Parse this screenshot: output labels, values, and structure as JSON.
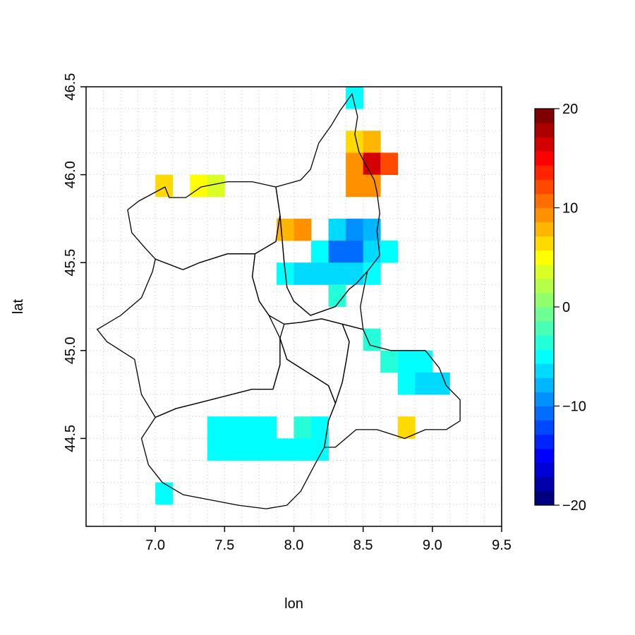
{
  "chart_data": {
    "type": "heatmap",
    "title": "",
    "xlabel": "lon",
    "ylabel": "lat",
    "xlim": [
      6.5,
      9.5
    ],
    "ylim": [
      44.0,
      46.5
    ],
    "xticks": [
      "7.0",
      "7.5",
      "8.0",
      "8.5",
      "9.0",
      "9.5"
    ],
    "yticks": [
      "44.5",
      "45.0",
      "45.5",
      "46.0",
      "46.5"
    ],
    "grid": true,
    "cell_size": [
      0.125,
      0.125
    ],
    "colorbar": {
      "min": -20,
      "max": 20,
      "ticks": [
        "-20",
        "-10",
        "0",
        "10",
        "20"
      ],
      "palette": [
        "#00007F",
        "#0000AA",
        "#0000D4",
        "#0000FF",
        "#0024FF",
        "#0048FF",
        "#006DFF",
        "#0091FF",
        "#00B6FF",
        "#00DAFF",
        "#00FFFF",
        "#24FFDA",
        "#48FFB6",
        "#6DFF91",
        "#91FF6D",
        "#B6FF48",
        "#DAFF24",
        "#FFFF00",
        "#FFDA00",
        "#FFB600",
        "#FF9100",
        "#FF6D00",
        "#FF4800",
        "#FF2400",
        "#FF0000",
        "#D40000",
        "#AA0000",
        "#7F0000"
      ]
    },
    "cells": [
      {
        "lon": 8.4375,
        "lat": 46.4375,
        "value": -5
      },
      {
        "lon": 8.4375,
        "lat": 46.1875,
        "value": 7
      },
      {
        "lon": 8.5625,
        "lat": 46.1875,
        "value": 8
      },
      {
        "lon": 8.4375,
        "lat": 46.0625,
        "value": 9
      },
      {
        "lon": 8.5625,
        "lat": 46.0625,
        "value": 16
      },
      {
        "lon": 8.6875,
        "lat": 46.0625,
        "value": 12
      },
      {
        "lon": 8.4375,
        "lat": 45.9375,
        "value": 9
      },
      {
        "lon": 8.5625,
        "lat": 45.9375,
        "value": 9
      },
      {
        "lon": 7.0625,
        "lat": 45.9375,
        "value": 6
      },
      {
        "lon": 7.3125,
        "lat": 45.9375,
        "value": 5
      },
      {
        "lon": 7.4375,
        "lat": 45.9375,
        "value": 3
      },
      {
        "lon": 7.9375,
        "lat": 45.6875,
        "value": 8
      },
      {
        "lon": 8.0625,
        "lat": 45.6875,
        "value": 9
      },
      {
        "lon": 8.3125,
        "lat": 45.6875,
        "value": -7
      },
      {
        "lon": 8.4375,
        "lat": 45.6875,
        "value": -9
      },
      {
        "lon": 8.5625,
        "lat": 45.6875,
        "value": -8
      },
      {
        "lon": 8.1875,
        "lat": 45.5625,
        "value": -5
      },
      {
        "lon": 8.3125,
        "lat": 45.5625,
        "value": -11
      },
      {
        "lon": 8.4375,
        "lat": 45.5625,
        "value": -11
      },
      {
        "lon": 8.5625,
        "lat": 45.5625,
        "value": -7
      },
      {
        "lon": 8.6875,
        "lat": 45.5625,
        "value": -5
      },
      {
        "lon": 7.9375,
        "lat": 45.4375,
        "value": -5
      },
      {
        "lon": 8.0625,
        "lat": 45.4375,
        "value": -7
      },
      {
        "lon": 8.1875,
        "lat": 45.4375,
        "value": -7
      },
      {
        "lon": 8.3125,
        "lat": 45.4375,
        "value": -7
      },
      {
        "lon": 8.4375,
        "lat": 45.4375,
        "value": -7
      },
      {
        "lon": 8.5625,
        "lat": 45.4375,
        "value": -5
      },
      {
        "lon": 8.3125,
        "lat": 45.3125,
        "value": -3
      },
      {
        "lon": 8.5625,
        "lat": 45.0625,
        "value": -3
      },
      {
        "lon": 8.6875,
        "lat": 44.9375,
        "value": -3
      },
      {
        "lon": 8.8125,
        "lat": 44.9375,
        "value": -5
      },
      {
        "lon": 8.9375,
        "lat": 44.9375,
        "value": -5
      },
      {
        "lon": 8.8125,
        "lat": 44.8125,
        "value": -5
      },
      {
        "lon": 8.9375,
        "lat": 44.8125,
        "value": -7
      },
      {
        "lon": 9.0625,
        "lat": 44.8125,
        "value": -7
      },
      {
        "lon": 8.8125,
        "lat": 44.5625,
        "value": 7
      },
      {
        "lon": 7.4375,
        "lat": 44.5625,
        "value": -5
      },
      {
        "lon": 7.5625,
        "lat": 44.5625,
        "value": -5
      },
      {
        "lon": 7.6875,
        "lat": 44.5625,
        "value": -5
      },
      {
        "lon": 7.8125,
        "lat": 44.5625,
        "value": -5
      },
      {
        "lon": 8.0625,
        "lat": 44.5625,
        "value": -3
      },
      {
        "lon": 8.1875,
        "lat": 44.5625,
        "value": -5
      },
      {
        "lon": 7.4375,
        "lat": 44.4375,
        "value": -5
      },
      {
        "lon": 7.5625,
        "lat": 44.4375,
        "value": -5
      },
      {
        "lon": 7.6875,
        "lat": 44.4375,
        "value": -5
      },
      {
        "lon": 7.8125,
        "lat": 44.4375,
        "value": -5
      },
      {
        "lon": 7.9375,
        "lat": 44.4375,
        "value": -5
      },
      {
        "lon": 8.0625,
        "lat": 44.4375,
        "value": -5
      },
      {
        "lon": 8.1875,
        "lat": 44.4375,
        "value": -5
      },
      {
        "lon": 7.0625,
        "lat": 44.1875,
        "value": -5
      }
    ],
    "outline_polygons": [
      [
        [
          6.88,
          45.85
        ],
        [
          7.07,
          45.93
        ],
        [
          7.1,
          45.87
        ],
        [
          7.22,
          45.87
        ],
        [
          7.33,
          45.93
        ],
        [
          7.52,
          45.96
        ],
        [
          7.7,
          45.96
        ],
        [
          7.87,
          45.93
        ],
        [
          7.9,
          45.77
        ],
        [
          7.87,
          45.62
        ],
        [
          7.72,
          45.55
        ],
        [
          7.52,
          45.55
        ],
        [
          7.32,
          45.5
        ],
        [
          7.2,
          45.46
        ],
        [
          7.0,
          45.52
        ],
        [
          6.93,
          45.58
        ],
        [
          6.83,
          45.67
        ],
        [
          6.8,
          45.8
        ]
      ],
      [
        [
          7.87,
          45.93
        ],
        [
          8.05,
          45.97
        ],
        [
          8.12,
          46.03
        ],
        [
          8.18,
          46.18
        ],
        [
          8.27,
          46.28
        ],
        [
          8.33,
          46.36
        ],
        [
          8.42,
          46.46
        ],
        [
          8.46,
          46.33
        ],
        [
          8.44,
          46.23
        ],
        [
          8.47,
          46.13
        ],
        [
          8.53,
          46.04
        ],
        [
          8.58,
          45.97
        ],
        [
          8.6,
          45.9
        ],
        [
          8.62,
          45.78
        ],
        [
          8.6,
          45.68
        ],
        [
          8.62,
          45.54
        ],
        [
          8.53,
          45.45
        ],
        [
          8.45,
          45.38
        ],
        [
          8.4,
          45.35
        ],
        [
          8.3,
          45.25
        ],
        [
          8.12,
          45.2
        ],
        [
          8.0,
          45.28
        ],
        [
          7.95,
          45.36
        ],
        [
          7.93,
          45.5
        ],
        [
          7.9,
          45.77
        ]
      ],
      [
        [
          7.9,
          45.77
        ],
        [
          7.93,
          45.5
        ],
        [
          7.95,
          45.36
        ],
        [
          8.0,
          45.28
        ],
        [
          8.12,
          45.2
        ],
        [
          8.3,
          45.25
        ],
        [
          8.4,
          45.35
        ],
        [
          8.45,
          45.38
        ],
        [
          8.53,
          45.45
        ],
        [
          8.48,
          45.25
        ],
        [
          8.5,
          45.12
        ],
        [
          8.45,
          45.13
        ],
        [
          8.35,
          45.15
        ],
        [
          8.2,
          45.18
        ],
        [
          8.05,
          45.16
        ],
        [
          7.93,
          45.15
        ],
        [
          7.82,
          45.2
        ],
        [
          7.75,
          45.28
        ],
        [
          7.7,
          45.42
        ],
        [
          7.72,
          45.55
        ],
        [
          7.87,
          45.62
        ]
      ],
      [
        [
          7.0,
          45.52
        ],
        [
          7.2,
          45.46
        ],
        [
          7.32,
          45.5
        ],
        [
          7.52,
          45.55
        ],
        [
          7.72,
          45.55
        ],
        [
          7.7,
          45.42
        ],
        [
          7.75,
          45.28
        ],
        [
          7.82,
          45.2
        ],
        [
          7.9,
          45.07
        ],
        [
          7.9,
          44.92
        ],
        [
          7.85,
          44.78
        ],
        [
          7.7,
          44.78
        ],
        [
          7.5,
          44.74
        ],
        [
          7.3,
          44.7
        ],
        [
          7.15,
          44.67
        ],
        [
          7.0,
          44.62
        ],
        [
          6.9,
          44.75
        ],
        [
          6.85,
          44.95
        ],
        [
          6.65,
          45.05
        ],
        [
          6.58,
          45.12
        ],
        [
          6.75,
          45.2
        ],
        [
          6.9,
          45.3
        ],
        [
          6.98,
          45.45
        ]
      ],
      [
        [
          7.9,
          45.07
        ],
        [
          7.95,
          44.95
        ],
        [
          8.05,
          44.9
        ],
        [
          8.15,
          44.85
        ],
        [
          8.25,
          44.8
        ],
        [
          8.3,
          44.7
        ],
        [
          8.25,
          44.6
        ],
        [
          8.22,
          44.45
        ],
        [
          8.15,
          44.35
        ],
        [
          8.05,
          44.2
        ],
        [
          7.95,
          44.12
        ],
        [
          7.8,
          44.1
        ],
        [
          7.6,
          44.12
        ],
        [
          7.4,
          44.15
        ],
        [
          7.2,
          44.18
        ],
        [
          7.05,
          44.25
        ],
        [
          6.95,
          44.35
        ],
        [
          6.9,
          44.5
        ],
        [
          7.0,
          44.62
        ],
        [
          7.15,
          44.67
        ],
        [
          7.3,
          44.7
        ],
        [
          7.5,
          44.74
        ],
        [
          7.7,
          44.78
        ],
        [
          7.85,
          44.78
        ],
        [
          7.9,
          44.92
        ]
      ],
      [
        [
          8.05,
          45.16
        ],
        [
          8.2,
          45.18
        ],
        [
          8.35,
          45.15
        ],
        [
          8.4,
          45.05
        ],
        [
          8.38,
          44.95
        ],
        [
          8.35,
          44.82
        ],
        [
          8.3,
          44.7
        ],
        [
          8.25,
          44.8
        ],
        [
          8.15,
          44.85
        ],
        [
          8.05,
          44.9
        ],
        [
          7.95,
          44.95
        ],
        [
          7.9,
          45.07
        ],
        [
          7.93,
          45.15
        ]
      ],
      [
        [
          8.35,
          45.15
        ],
        [
          8.45,
          45.13
        ],
        [
          8.5,
          45.12
        ],
        [
          8.55,
          45.03
        ],
        [
          8.7,
          45.0
        ],
        [
          8.95,
          45.0
        ],
        [
          9.05,
          44.9
        ],
        [
          9.1,
          44.8
        ],
        [
          9.2,
          44.72
        ],
        [
          9.2,
          44.6
        ],
        [
          9.1,
          44.55
        ],
        [
          8.95,
          44.55
        ],
        [
          8.8,
          44.5
        ],
        [
          8.6,
          44.55
        ],
        [
          8.45,
          44.55
        ],
        [
          8.3,
          44.45
        ],
        [
          8.22,
          44.45
        ],
        [
          8.25,
          44.6
        ],
        [
          8.3,
          44.7
        ],
        [
          8.35,
          44.82
        ],
        [
          8.38,
          44.95
        ],
        [
          8.4,
          45.05
        ]
      ]
    ]
  }
}
